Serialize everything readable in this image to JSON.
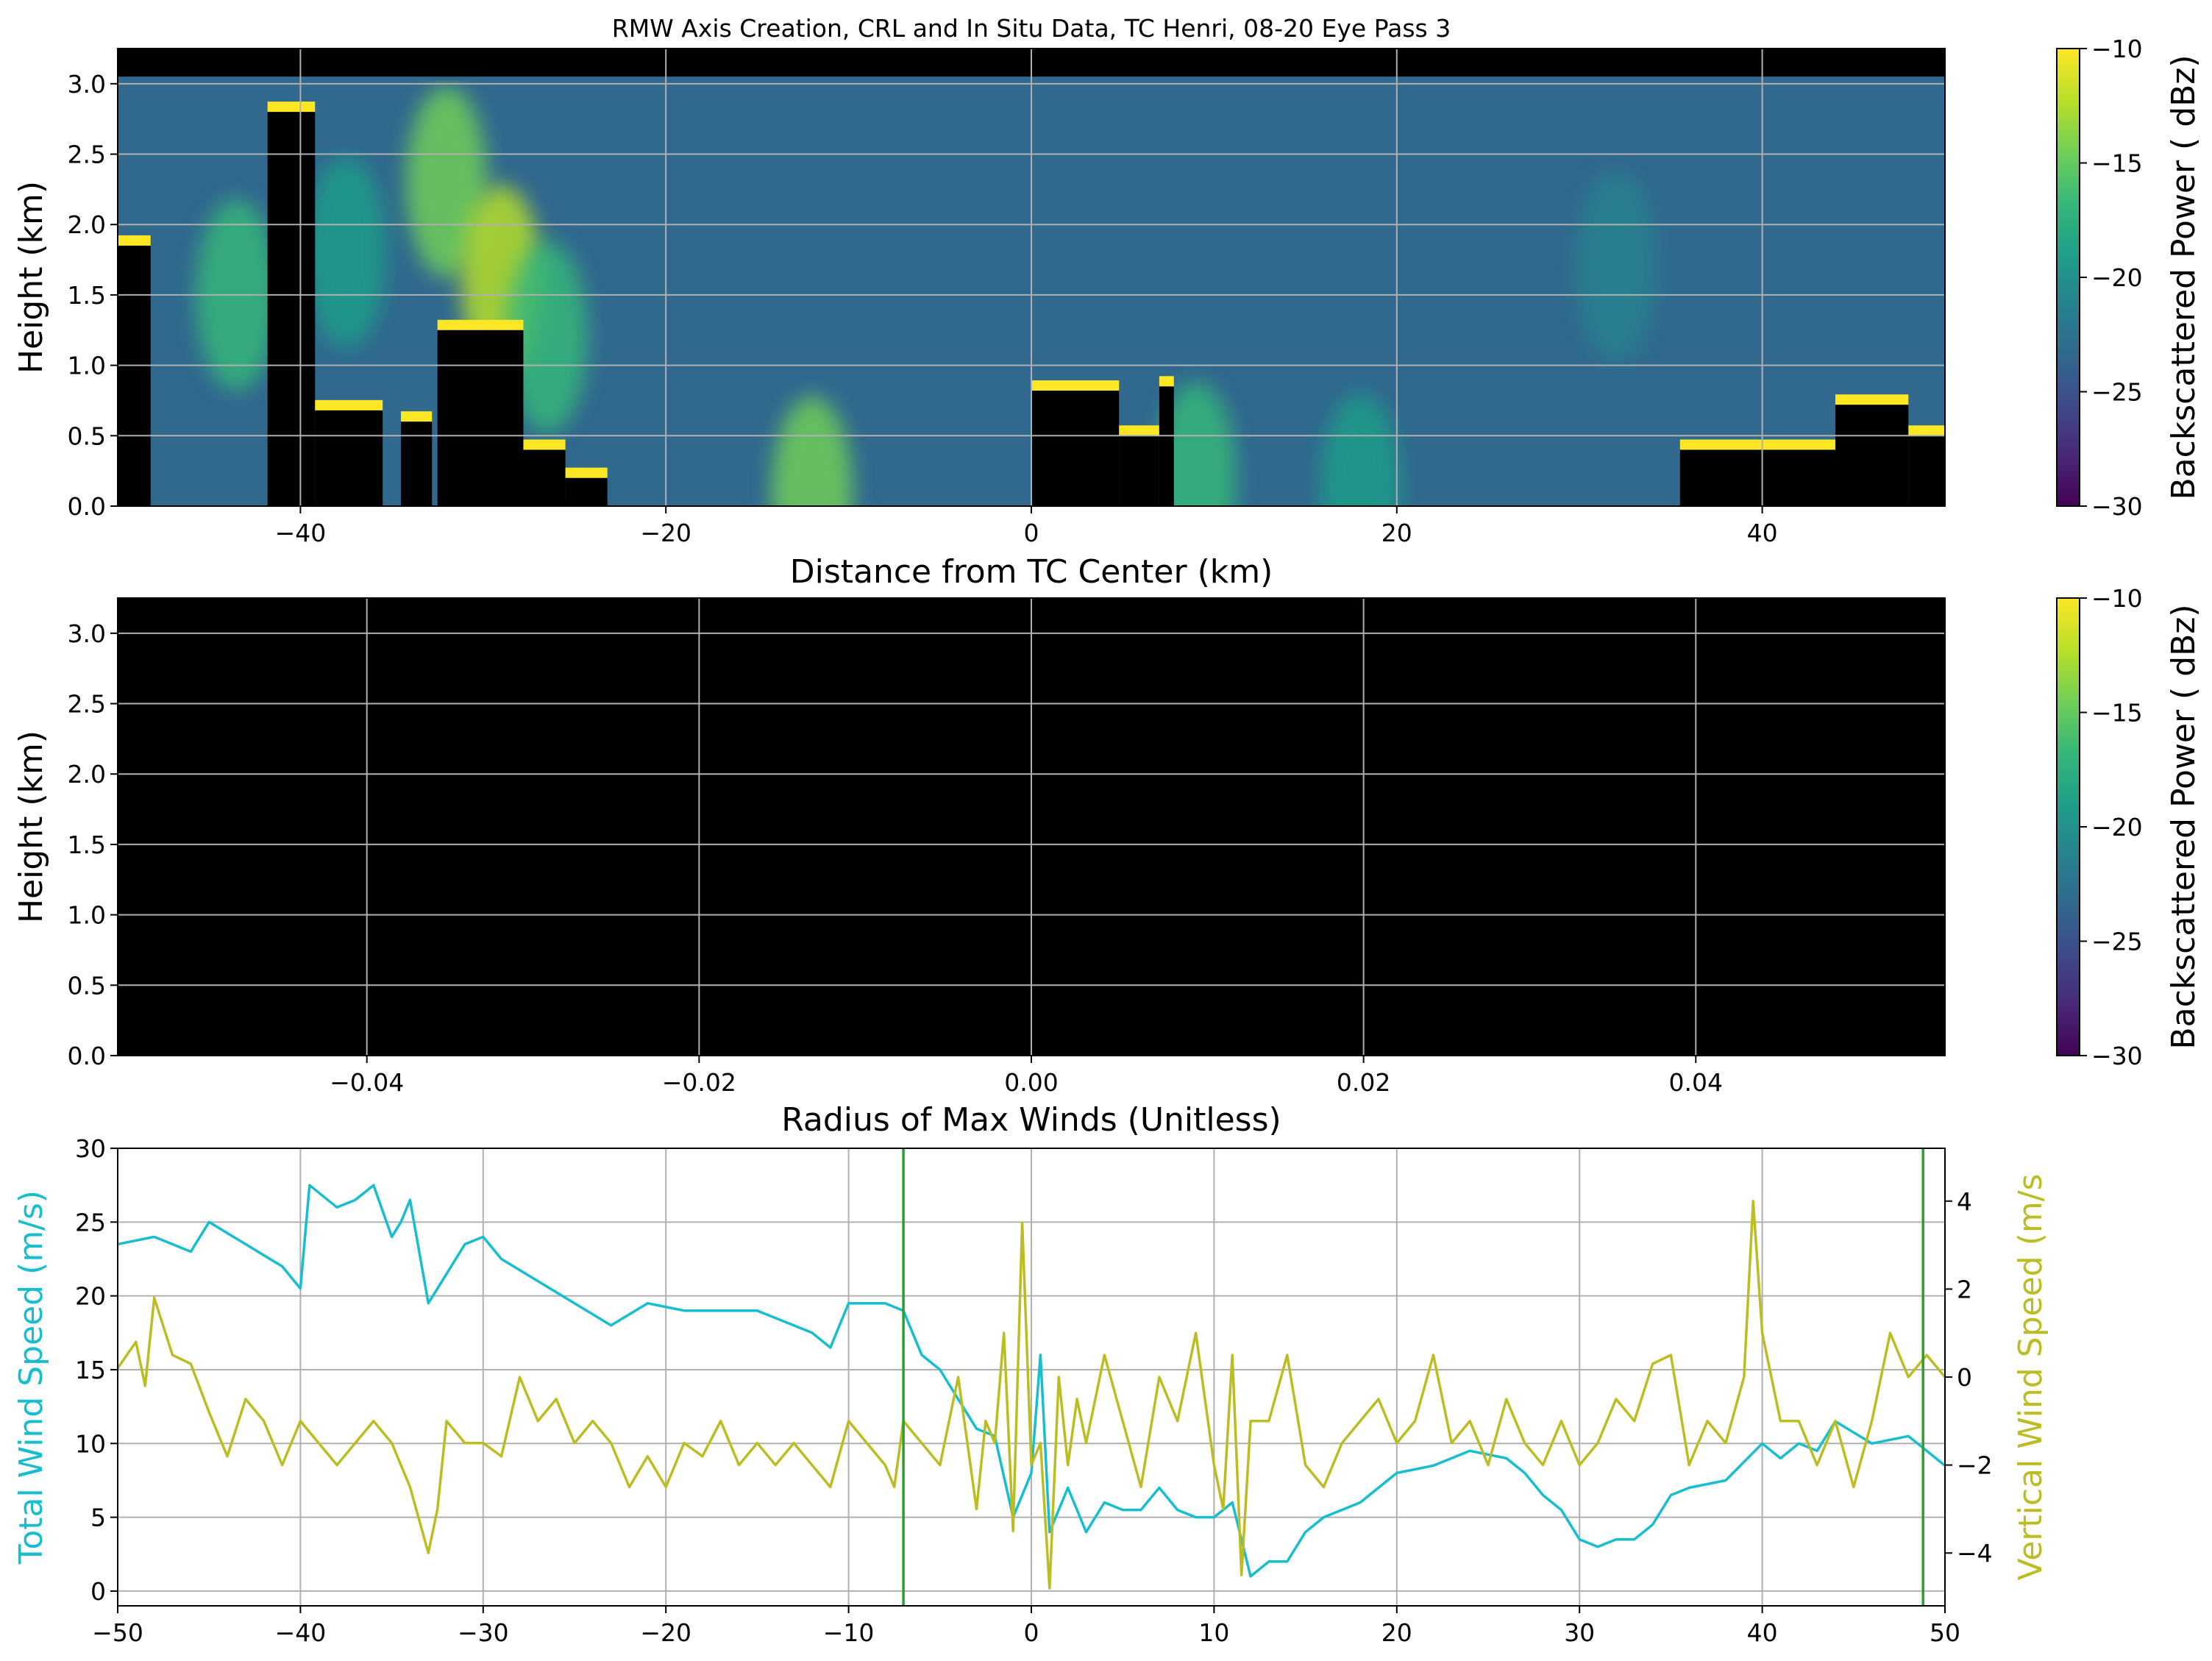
{
  "figure_title": "RMW Axis Creation, CRL and In Situ Data, TC Henri, 08-20 Eye Pass 3",
  "chart_data": [
    {
      "type": "heatmap",
      "id": "crl-distance",
      "xlabel": "Distance from TC Center (km)",
      "ylabel": "Height (km)",
      "xlim": [
        -50,
        50
      ],
      "ylim": [
        0,
        3.25
      ],
      "xticks": [
        -40,
        -20,
        0,
        20,
        40
      ],
      "xtick_labels": [
        "−40",
        "−20",
        "0",
        "20",
        "40"
      ],
      "yticks": [
        0.0,
        0.5,
        1.0,
        1.5,
        2.0,
        2.5,
        3.0
      ],
      "ytick_labels": [
        "0.0",
        "0.5",
        "1.0",
        "1.5",
        "2.0",
        "2.5",
        "3.0"
      ],
      "grid": true,
      "background_value_dbz": -23,
      "top_black_band_km": [
        3.05,
        3.25
      ],
      "colorbar": {
        "label": "Backscattered Power ( dBz)",
        "range": [
          -30,
          -10
        ],
        "ticks": [
          -30,
          -25,
          -20,
          -15,
          -10
        ],
        "tick_labels": [
          "−30",
          "−25",
          "−20",
          "−15",
          "−10"
        ],
        "colormap": "viridis",
        "colormap_stops": [
          "#440154",
          "#482878",
          "#3e4a89",
          "#31688e",
          "#26828e",
          "#1f9e89",
          "#35b779",
          "#6ece58",
          "#b5de2b",
          "#fde725"
        ]
      },
      "cloud_columns": [
        {
          "x": [
            -50,
            -48.2
          ],
          "top_km": 1.85
        },
        {
          "x": [
            -41.8,
            -39.2
          ],
          "top_km": 2.8
        },
        {
          "x": [
            -39.2,
            -35.5
          ],
          "top_km": 0.68
        },
        {
          "x": [
            -34.5,
            -32.8
          ],
          "top_km": 0.6
        },
        {
          "x": [
            -32.5,
            -27.8
          ],
          "top_km": 1.25
        },
        {
          "x": [
            -27.8,
            -25.5
          ],
          "top_km": 0.4
        },
        {
          "x": [
            -25.5,
            -23.2
          ],
          "top_km": 0.2
        },
        {
          "x": [
            0.0,
            4.8
          ],
          "top_km": 0.82
        },
        {
          "x": [
            4.8,
            7.0
          ],
          "top_km": 0.5
        },
        {
          "x": [
            7.0,
            7.8
          ],
          "top_km": 0.85
        },
        {
          "x": [
            35.5,
            44.0
          ],
          "top_km": 0.4
        },
        {
          "x": [
            44.0,
            48.0
          ],
          "top_km": 0.72
        },
        {
          "x": [
            48.0,
            50.0
          ],
          "top_km": 0.5
        }
      ],
      "plumes": [
        {
          "x": -43.5,
          "y": 1.5,
          "value": -16
        },
        {
          "x": -37.5,
          "y": 1.8,
          "value": -19
        },
        {
          "x": -32.0,
          "y": 2.3,
          "value": -14
        },
        {
          "x": -29.0,
          "y": 1.6,
          "value": -13
        },
        {
          "x": -26.5,
          "y": 1.2,
          "value": -16
        },
        {
          "x": -12.0,
          "y": 0.1,
          "value": -14
        },
        {
          "x": 9.0,
          "y": 0.2,
          "value": -16
        },
        {
          "x": 18.0,
          "y": 0.12,
          "value": -19
        },
        {
          "x": 32.0,
          "y": 1.7,
          "value": -22
        }
      ]
    },
    {
      "type": "heatmap",
      "id": "crl-rmw",
      "xlabel": "Radius of Max Winds (Unitless)",
      "ylabel": "Height (km)",
      "xlim": [
        -0.055,
        0.055
      ],
      "ylim": [
        0,
        3.25
      ],
      "xticks": [
        -0.04,
        -0.02,
        0.0,
        0.02,
        0.04
      ],
      "xtick_labels": [
        "−0.04",
        "−0.02",
        "0.00",
        "0.02",
        "0.04"
      ],
      "yticks": [
        0.0,
        0.5,
        1.0,
        1.5,
        2.0,
        2.5,
        3.0
      ],
      "ytick_labels": [
        "0.0",
        "0.5",
        "1.0",
        "1.5",
        "2.0",
        "2.5",
        "3.0"
      ],
      "grid": true,
      "fill": "black",
      "colorbar": {
        "label": "Backscattered Power ( dBz)",
        "range": [
          -30,
          -10
        ],
        "ticks": [
          -30,
          -25,
          -20,
          -15,
          -10
        ],
        "tick_labels": [
          "−30",
          "−25",
          "−20",
          "−15",
          "−10"
        ],
        "colormap": "viridis"
      }
    },
    {
      "type": "line",
      "id": "in-situ-winds",
      "xlim": [
        -50,
        50
      ],
      "xticks": [
        -50,
        -40,
        -30,
        -20,
        -10,
        0,
        10,
        20,
        30,
        40,
        50
      ],
      "xtick_labels": [
        "−50",
        "−40",
        "−30",
        "−20",
        "−10",
        "0",
        "10",
        "20",
        "30",
        "40",
        "50"
      ],
      "grid": true,
      "left_axis": {
        "label": "Total Wind Speed (m/s)",
        "color": "#17becf",
        "ylim": [
          -1,
          30
        ],
        "ticks": [
          0,
          5,
          10,
          15,
          20,
          25,
          30
        ],
        "tick_labels": [
          "0",
          "5",
          "10",
          "15",
          "20",
          "25",
          "30"
        ]
      },
      "right_axis": {
        "label": "Vertical Wind Speed (m/s",
        "color": "#bcbd22",
        "ylim": [
          -5.2,
          5.2
        ],
        "ticks": [
          -4,
          -2,
          0,
          2,
          4
        ],
        "tick_labels": [
          "−4",
          "−2",
          "0",
          "2",
          "4"
        ]
      },
      "vlines": [
        {
          "x": -7.0,
          "color": "#2ca02c"
        },
        {
          "x": 48.8,
          "color": "#2ca02c"
        }
      ],
      "series": [
        {
          "axis": "left",
          "color": "#17becf",
          "x": [
            -50,
            -48,
            -46,
            -45,
            -43,
            -41,
            -40,
            -39.5,
            -38,
            -37,
            -36,
            -35,
            -34.5,
            -34,
            -33,
            -31,
            -30,
            -29,
            -27,
            -25,
            -23,
            -21,
            -19,
            -17,
            -15,
            -13,
            -12,
            -11,
            -10,
            -8,
            -7,
            -6,
            -5,
            -4,
            -3,
            -2,
            -1,
            0,
            0.5,
            1,
            2,
            3,
            4,
            5,
            6,
            7,
            8,
            9,
            10,
            11,
            12,
            13,
            14,
            15,
            16,
            18,
            20,
            22,
            24,
            26,
            27,
            28,
            29,
            30,
            31,
            32,
            33,
            34,
            35,
            36,
            38,
            40,
            41,
            42,
            43,
            44,
            46,
            48,
            50
          ],
          "y": [
            23.5,
            24,
            23,
            25,
            23.5,
            22,
            20.5,
            27.5,
            26,
            26.5,
            27.5,
            24,
            25,
            26.5,
            19.5,
            23.5,
            24,
            22.5,
            21,
            19.5,
            18,
            19.5,
            19,
            19,
            19,
            18,
            17.5,
            16.5,
            19.5,
            19.5,
            19,
            16,
            15,
            13,
            11,
            10.5,
            5,
            8,
            16,
            4,
            7,
            4,
            6,
            5.5,
            5.5,
            7,
            5.5,
            5,
            5,
            6,
            1,
            2,
            2,
            4,
            5,
            6,
            8,
            8.5,
            9.5,
            9,
            8,
            6.5,
            5.5,
            3.5,
            3,
            3.5,
            3.5,
            4.5,
            6.5,
            7,
            7.5,
            10,
            9,
            10,
            9.5,
            11.5,
            10,
            10.5,
            8.5
          ]
        },
        {
          "axis": "right",
          "color": "#bcbd22",
          "x": [
            -50,
            -49,
            -48.5,
            -48,
            -47,
            -46,
            -45,
            -44,
            -43,
            -42,
            -41,
            -40,
            -39,
            -38,
            -37,
            -36,
            -35,
            -34,
            -33,
            -32.5,
            -32,
            -31,
            -30,
            -29,
            -28,
            -27,
            -26,
            -25,
            -24,
            -23,
            -22,
            -21,
            -20,
            -19,
            -18,
            -17,
            -16,
            -15,
            -14,
            -13,
            -12,
            -11,
            -10,
            -9,
            -8,
            -7.5,
            -7,
            -6,
            -5,
            -4,
            -3,
            -2.5,
            -2,
            -1.5,
            -1,
            -0.5,
            0,
            0.5,
            1,
            1.5,
            2,
            2.5,
            3,
            4,
            5,
            6,
            7,
            8,
            9,
            10,
            10.5,
            11,
            11.5,
            12,
            13,
            14,
            15,
            16,
            17,
            18,
            19,
            20,
            21,
            22,
            23,
            24,
            25,
            26,
            27,
            28,
            29,
            30,
            31,
            32,
            33,
            34,
            35,
            36,
            37,
            38,
            39,
            39.5,
            40,
            41,
            42,
            43,
            44,
            45,
            46,
            47,
            48,
            49,
            50
          ],
          "y": [
            0.2,
            0.8,
            -0.2,
            1.8,
            0.5,
            0.3,
            -0.8,
            -1.8,
            -0.5,
            -1,
            -2,
            -1,
            -1.5,
            -2,
            -1.5,
            -1,
            -1.5,
            -2.5,
            -4,
            -3,
            -1,
            -1.5,
            -1.5,
            -1.8,
            0,
            -1,
            -0.5,
            -1.5,
            -1,
            -1.5,
            -2.5,
            -1.8,
            -2.5,
            -1.5,
            -1.8,
            -1,
            -2,
            -1.5,
            -2,
            -1.5,
            -2,
            -2.5,
            -1,
            -1.5,
            -2,
            -2.5,
            -1,
            -1.5,
            -2,
            0,
            -3,
            -1,
            -1.5,
            1,
            -3.5,
            3.5,
            -2,
            -1.5,
            -4.8,
            0,
            -2,
            -0.5,
            -1.5,
            0.5,
            -1,
            -2.5,
            0,
            -1,
            1,
            -2,
            -3,
            0.5,
            -4.5,
            -1,
            -1,
            0.5,
            -2,
            -2.5,
            -1.5,
            -1,
            -0.5,
            -1.5,
            -1,
            0.5,
            -1.5,
            -1,
            -2,
            -0.5,
            -1.5,
            -2,
            -1,
            -2,
            -1.5,
            -0.5,
            -1,
            0.3,
            0.5,
            -2,
            -1,
            -1.5,
            0,
            4,
            1,
            -1,
            -1,
            -2,
            -1,
            -2.5,
            -1,
            1,
            0,
            0.5,
            0
          ]
        }
      ]
    }
  ]
}
